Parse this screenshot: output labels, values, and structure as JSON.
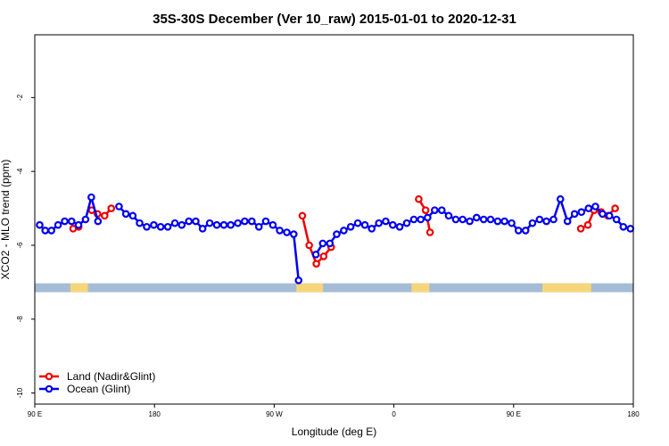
{
  "chart_data": {
    "type": "line",
    "title": "35S-30S December (Ver 10_raw)   2015-01-01 to 2020-12-31",
    "xlabel": "Longitude (deg E)",
    "ylabel": "XCO2 - MLO trend (ppm)",
    "xlim": [
      90,
      360
    ],
    "ylim": [
      -10.3,
      -0.3
    ],
    "x_ticks": [
      {
        "value": 90,
        "label": "90 E"
      },
      {
        "value": 144,
        "label": "180"
      },
      {
        "value": 198,
        "label": "90 W"
      },
      {
        "value": 252,
        "label": "0"
      },
      {
        "value": 306,
        "label": "90 E"
      },
      {
        "value": 360,
        "label": "180"
      }
    ],
    "y_ticks": [
      {
        "value": -2,
        "label": "-2"
      },
      {
        "value": -4,
        "label": "-4"
      },
      {
        "value": -6,
        "label": "-6"
      },
      {
        "value": -8,
        "label": "-8"
      },
      {
        "value": -10,
        "label": "-10"
      }
    ],
    "land_band": {
      "y_center": -7.15,
      "ocean_color": "#a5bcd6",
      "land_color": "#f5d67a",
      "land_segments": [
        [
          106,
          114
        ],
        [
          208,
          220
        ],
        [
          260,
          268
        ],
        [
          319,
          341
        ]
      ]
    },
    "legend_position": "bottom-left",
    "series": [
      {
        "name": "Land (Nadir&Glint)",
        "color": "#ee0000",
        "x": [
          107.3,
          109.8,
          115.7,
          118.3,
          121.5,
          124.5,
          210.7,
          213.8,
          217.0,
          220.3,
          223.7,
          263.2,
          266.3,
          268.3,
          336.3,
          339.5,
          342.3,
          345.5,
          348.5,
          351.8
        ],
        "values": [
          -5.55,
          -5.5,
          -5.05,
          -5.15,
          -5.2,
          -5.0,
          -5.2,
          -6.0,
          -6.5,
          -6.3,
          -6.05,
          -4.75,
          -5.05,
          -5.65,
          -5.55,
          -5.45,
          -5.05,
          -5.1,
          -5.2,
          -5.0
        ]
      },
      {
        "name": "Ocean (Glint)",
        "color": "#0000ee",
        "x": [
          92.2,
          94.7,
          97.5,
          100.5,
          103.5,
          106.6,
          109.7,
          112.9,
          115.5,
          118.5,
          128.0,
          131.1,
          134.2,
          137.3,
          140.5,
          143.7,
          146.8,
          150.0,
          153.2,
          156.3,
          159.5,
          162.6,
          165.7,
          168.9,
          172.1,
          175.3,
          178.4,
          181.6,
          184.7,
          187.9,
          191.1,
          194.2,
          197.4,
          200.5,
          203.7,
          206.8,
          209.0,
          216.8,
          219.9,
          223.1,
          226.2,
          229.4,
          232.5,
          235.7,
          238.9,
          242.0,
          245.2,
          248.3,
          251.5,
          254.6,
          257.8,
          261.0,
          264.1,
          267.2,
          270.4,
          273.6,
          276.7,
          279.9,
          283.0,
          286.2,
          289.3,
          292.5,
          295.6,
          298.8,
          301.9,
          305.1,
          308.2,
          311.4,
          314.5,
          317.7,
          320.8,
          324.0,
          327.1,
          330.3,
          333.5,
          336.6,
          339.8,
          342.9,
          346.1,
          349.2,
          352.4,
          355.5,
          358.7
        ],
        "values": [
          -5.45,
          -5.6,
          -5.6,
          -5.45,
          -5.35,
          -5.35,
          -5.45,
          -5.3,
          -4.7,
          -5.35,
          -4.95,
          -5.15,
          -5.2,
          -5.4,
          -5.5,
          -5.45,
          -5.5,
          -5.5,
          -5.4,
          -5.45,
          -5.35,
          -5.35,
          -5.55,
          -5.4,
          -5.45,
          -5.45,
          -5.45,
          -5.4,
          -5.35,
          -5.35,
          -5.5,
          -5.35,
          -5.45,
          -5.6,
          -5.65,
          -5.7,
          -6.95,
          -6.25,
          -5.95,
          -5.95,
          -5.7,
          -5.6,
          -5.5,
          -5.4,
          -5.45,
          -5.55,
          -5.4,
          -5.35,
          -5.45,
          -5.5,
          -5.4,
          -5.3,
          -5.3,
          -5.25,
          -5.05,
          -5.05,
          -5.2,
          -5.3,
          -5.3,
          -5.35,
          -5.25,
          -5.3,
          -5.3,
          -5.35,
          -5.35,
          -5.4,
          -5.6,
          -5.6,
          -5.4,
          -5.3,
          -5.35,
          -5.3,
          -4.75,
          -5.35,
          -5.15,
          -5.1,
          -5.0,
          -4.95,
          -5.15,
          -5.2,
          -5.3,
          -5.5,
          -5.55
        ]
      }
    ]
  }
}
